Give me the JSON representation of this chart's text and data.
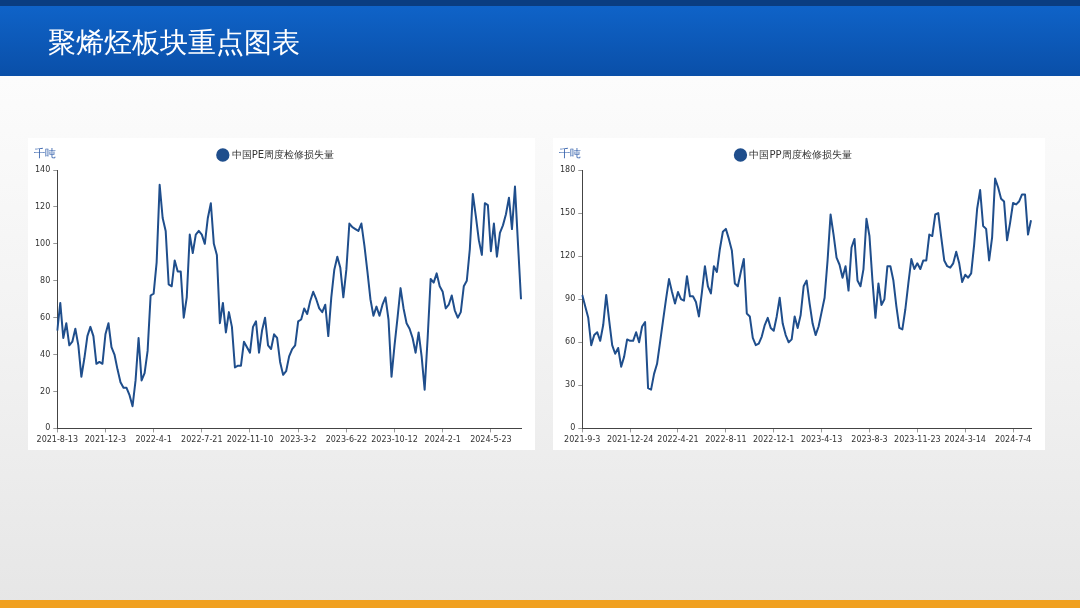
{
  "chart_data": [
    {
      "type": "line",
      "annotations": [
        "聚烯烃板块重点图表"
      ],
      "ylabel": "千吨",
      "legend": "top",
      "marker": "none",
      "grid": false,
      "ylim": [
        0,
        140
      ],
      "yticks": [
        0,
        20,
        40,
        60,
        80,
        100,
        120,
        140
      ],
      "categories": [
        "2021-8-13",
        null,
        null,
        null,
        null,
        null,
        null,
        null,
        null,
        null,
        null,
        null,
        null,
        null,
        null,
        null,
        "2021-12-3",
        null,
        null,
        null,
        null,
        null,
        null,
        null,
        null,
        null,
        null,
        null,
        null,
        null,
        null,
        null,
        "2022-4-1",
        null,
        null,
        null,
        null,
        null,
        null,
        null,
        null,
        null,
        null,
        null,
        null,
        null,
        null,
        null,
        "2022-7-21",
        null,
        null,
        null,
        null,
        null,
        null,
        null,
        null,
        null,
        null,
        null,
        null,
        null,
        null,
        null,
        "2022-11-10",
        null,
        null,
        null,
        null,
        null,
        null,
        null,
        null,
        null,
        null,
        null,
        null,
        null,
        null,
        null,
        "2023-3-2",
        null,
        null,
        null,
        null,
        null,
        null,
        null,
        null,
        null,
        null,
        null,
        null,
        null,
        null,
        null,
        "2023-6-22",
        null,
        null,
        null,
        null,
        null,
        null,
        null,
        null,
        null,
        null,
        null,
        null,
        null,
        null,
        null,
        "2023-10-12",
        null,
        null,
        null,
        null,
        null,
        null,
        null,
        null,
        null,
        null,
        null,
        null,
        null,
        null,
        null,
        "2024-2-1",
        null,
        null,
        null,
        null,
        null,
        null,
        null,
        null,
        null,
        null,
        null,
        null,
        null,
        null,
        null,
        "2024-5-23",
        null,
        null,
        null,
        null,
        null,
        null,
        null,
        null,
        null,
        null
      ],
      "series": [
        {
          "name": "中国PE周度检修损失量",
          "color": "#1f4e8c",
          "values": [
            53,
            68,
            49,
            57,
            45,
            47,
            54,
            45,
            28,
            38,
            50,
            55,
            50,
            35,
            36,
            35,
            51,
            57,
            44,
            40,
            32,
            25,
            22,
            22,
            18,
            12,
            26,
            49,
            26,
            30,
            42,
            72,
            73,
            90,
            132,
            114,
            107,
            78,
            77,
            91,
            85,
            85,
            60,
            71,
            105,
            95,
            105,
            107,
            105,
            100,
            114,
            122,
            100,
            94,
            57,
            68,
            52,
            63,
            55,
            33,
            34,
            34,
            47,
            44,
            41,
            55,
            58,
            41,
            53,
            60,
            45,
            43,
            51,
            49,
            36,
            29,
            31,
            39,
            43,
            45,
            58,
            59,
            65,
            62,
            69,
            74,
            70,
            65,
            63,
            67,
            50,
            71,
            86,
            93,
            87,
            71,
            86,
            111,
            109,
            108,
            107,
            111,
            99,
            85,
            70,
            61,
            66,
            61,
            67,
            71,
            59,
            28,
            45,
            60,
            76,
            65,
            57,
            54,
            49,
            41,
            52,
            39,
            21,
            49,
            81,
            79,
            84,
            77,
            74,
            65,
            67,
            72,
            64,
            60,
            63,
            77,
            80,
            97,
            127,
            115,
            102,
            94,
            122,
            121,
            96,
            111,
            93,
            106,
            110,
            116,
            125,
            108,
            131,
            100,
            70
          ]
        }
      ]
    },
    {
      "type": "line",
      "ylabel": "千吨",
      "legend": "top",
      "marker": "none",
      "grid": false,
      "ylim": [
        0,
        180
      ],
      "yticks": [
        0,
        30,
        60,
        90,
        120,
        150,
        180
      ],
      "categories": [
        "2021-9-3",
        null,
        null,
        null,
        null,
        null,
        null,
        null,
        null,
        null,
        null,
        null,
        null,
        null,
        null,
        null,
        "2021-12-24",
        null,
        null,
        null,
        null,
        null,
        null,
        null,
        null,
        null,
        null,
        null,
        null,
        null,
        null,
        null,
        "2022-4-21",
        null,
        null,
        null,
        null,
        null,
        null,
        null,
        null,
        null,
        null,
        null,
        null,
        null,
        null,
        null,
        "2022-8-11",
        null,
        null,
        null,
        null,
        null,
        null,
        null,
        null,
        null,
        null,
        null,
        null,
        null,
        null,
        null,
        "2022-12-1",
        null,
        null,
        null,
        null,
        null,
        null,
        null,
        null,
        null,
        null,
        null,
        null,
        null,
        null,
        null,
        "2023-4-13",
        null,
        null,
        null,
        null,
        null,
        null,
        null,
        null,
        null,
        null,
        null,
        null,
        null,
        null,
        null,
        "2023-8-3",
        null,
        null,
        null,
        null,
        null,
        null,
        null,
        null,
        null,
        null,
        null,
        null,
        null,
        null,
        null,
        "2023-11-23",
        null,
        null,
        null,
        null,
        null,
        null,
        null,
        null,
        null,
        null,
        null,
        null,
        null,
        null,
        null,
        "2024-3-14",
        null,
        null,
        null,
        null,
        null,
        null,
        null,
        null,
        null,
        null,
        null,
        null,
        null,
        null,
        null,
        "2024-7-4",
        null,
        null,
        null,
        null,
        null,
        null
      ],
      "series": [
        {
          "name": "中国PP周度检修损失量",
          "color": "#1f4e8c",
          "values": [
            93,
            85,
            77,
            58,
            65,
            67,
            61,
            72,
            93,
            75,
            58,
            52,
            56,
            43,
            50,
            62,
            61,
            61,
            67,
            60,
            71,
            74,
            28,
            27,
            38,
            45,
            60,
            75,
            90,
            104,
            95,
            87,
            95,
            90,
            89,
            106,
            92,
            92,
            88,
            78,
            95,
            113,
            99,
            94,
            113,
            109,
            125,
            137,
            139,
            132,
            124,
            101,
            99,
            109,
            118,
            80,
            78,
            63,
            58,
            59,
            64,
            72,
            77,
            70,
            68,
            78,
            91,
            73,
            65,
            60,
            62,
            78,
            70,
            79,
            99,
            103,
            87,
            73,
            65,
            71,
            81,
            91,
            117,
            149,
            135,
            119,
            114,
            105,
            113,
            96,
            126,
            132,
            103,
            99,
            111,
            146,
            134,
            103,
            77,
            101,
            86,
            90,
            113,
            113,
            103,
            85,
            70,
            69,
            83,
            101,
            118,
            111,
            115,
            111,
            117,
            117,
            135,
            134,
            149,
            150,
            133,
            117,
            113,
            112,
            115,
            123,
            115,
            102,
            107,
            105,
            108,
            128,
            153,
            166,
            141,
            139,
            117,
            133,
            174,
            168,
            160,
            158,
            131,
            143,
            157,
            156,
            158,
            163,
            163,
            135,
            145
          ]
        }
      ]
    }
  ]
}
